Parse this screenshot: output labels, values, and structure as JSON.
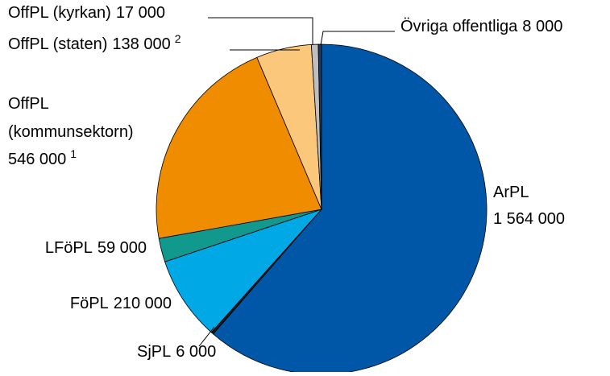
{
  "chart_data": {
    "type": "pie",
    "categories": [
      "ArPL",
      "SjPL",
      "FöPL",
      "LFöPL",
      "OffPL (kommunsektorn)",
      "OffPL (staten)",
      "OffPL (kyrkan)",
      "Övriga offentliga"
    ],
    "values": [
      1564000,
      6000,
      210000,
      59000,
      546000,
      138000,
      17000,
      8000
    ],
    "value_labels": [
      "1 564 000",
      "6 000",
      "210 000",
      "59 000",
      "546 000",
      "138 000",
      "17 000",
      "8 000"
    ],
    "footnotes": [
      null,
      null,
      null,
      null,
      "1",
      "2",
      null,
      null
    ],
    "colors": [
      "#0057a8",
      "#1a1a1a",
      "#00a9e6",
      "#12998e",
      "#f08c00",
      "#fbc77a",
      "#bfbfbf",
      "#1f3864"
    ]
  }
}
